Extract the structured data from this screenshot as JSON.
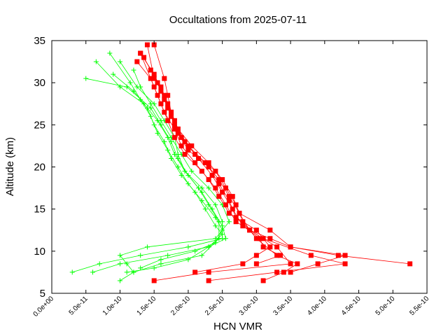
{
  "chart_data": {
    "type": "scatter",
    "title": "Occultations from 2025-07-11",
    "xlabel": "HCN VMR",
    "ylabel": "Altitude (km)",
    "xlim": [
      0,
      5.5e-10
    ],
    "ylim": [
      5,
      35
    ],
    "grid": false,
    "legend": "none",
    "x_ticks": [
      "0.0e+00",
      "5.0e-11",
      "1.0e-10",
      "1.5e-10",
      "2.0e-10",
      "2.5e-10",
      "3.0e-10",
      "3.5e-10",
      "4.0e-10",
      "4.5e-10",
      "5.0e-10",
      "5.5e-10"
    ],
    "x_tick_values": [
      0,
      5e-11,
      1e-10,
      1.5e-10,
      2e-10,
      2.5e-10,
      3e-10,
      3.5e-10,
      4e-10,
      4.5e-10,
      5e-10,
      5.5e-10
    ],
    "y_ticks": [
      "5",
      "10",
      "15",
      "20",
      "25",
      "30",
      "35"
    ],
    "y_tick_values": [
      5,
      10,
      15,
      20,
      25,
      30,
      35
    ],
    "colors": {
      "red": "#ff0000",
      "green": "#00ff00",
      "axis": "#000000"
    },
    "series": [
      {
        "color": "#00ff00",
        "marker": "plus",
        "profiles": [
          {
            "x": [
              1.2e-10,
              1.1e-10,
              1e-10,
              1.4e-10,
              2.4e-10,
              2.6e-10,
              2.5e-10,
              2.3e-10,
              2.05e-10,
              1.9e-10,
              1.75e-10,
              1.6e-10,
              1.45e-10,
              1.3e-10,
              1.2e-10
            ],
            "y": [
              7.5,
              8.5,
              9.5,
              10.5,
              11.5,
              13.5,
              15.5,
              17.5,
              19.5,
              21.5,
              23.5,
              25.5,
              27.5,
              29.5,
              31.5
            ]
          },
          {
            "x": [
              3e-11,
              7e-11,
              1.3e-10,
              2e-10,
              2.5e-10,
              2.5e-10,
              2.4e-10,
              2.2e-10,
              1.95e-10,
              1.8e-10,
              1.7e-10,
              1.55e-10,
              1.35e-10,
              1e-10,
              6.5e-11
            ],
            "y": [
              7.5,
              8.5,
              9.5,
              10.5,
              11.5,
              13.5,
              15.5,
              17.5,
              19.5,
              21.5,
              23.5,
              25.5,
              27.5,
              29.5,
              32.5
            ]
          },
          {
            "x": [
              1e-10,
              1.2e-10,
              1.6e-10,
              2.2e-10,
              2.45e-10,
              2.45e-10,
              2.3e-10,
              2.15e-10,
              1.95e-10,
              1.85e-10,
              1.8e-10,
              1.65e-10,
              1.5e-10,
              1.25e-10,
              1e-10
            ],
            "y": [
              6.5,
              7.5,
              8.5,
              9.5,
              11.5,
              13.5,
              15.5,
              17.5,
              19.5,
              21.5,
              23.5,
              25.5,
              27.5,
              29.5,
              32.5
            ]
          },
          {
            "x": [
              1.1e-10,
              1.5e-10,
              2e-10,
              2.3e-10,
              2.5e-10,
              2.4e-10,
              2.25e-10,
              2.1e-10,
              1.9e-10,
              1.75e-10,
              1.65e-10,
              1.5e-10,
              1.4e-10,
              1.2e-10,
              9e-11
            ],
            "y": [
              7.5,
              8.0,
              9.0,
              10.5,
              12.0,
              13.0,
              15.0,
              17.0,
              19.0,
              21.0,
              23.0,
              25.0,
              27.0,
              29.0,
              31.0
            ]
          },
          {
            "x": [
              6e-11,
              1e-10,
              1.7e-10,
              2.3e-10,
              2.55e-10,
              2.5e-10,
              2.35e-10,
              2.2e-10,
              2e-10,
              1.85e-10,
              1.75e-10,
              1.6e-10,
              1.45e-10,
              1.1e-10,
              5e-11
            ],
            "y": [
              7.5,
              8.5,
              9.5,
              10.5,
              11.5,
              13.0,
              15.0,
              17.0,
              19.0,
              21.0,
              23.0,
              25.0,
              27.0,
              29.5,
              30.5
            ]
          },
          {
            "x": [
              1.3e-10,
              1.6e-10,
              2.1e-10,
              2.4e-10,
              2.5e-10,
              2.4e-10,
              2.2e-10,
              2e-10,
              1.85e-10,
              1.7e-10,
              1.55e-10,
              1.45e-10,
              1.3e-10,
              1.15e-10,
              8.5e-11
            ],
            "y": [
              8.0,
              9.0,
              10.0,
              11.0,
              12.5,
              14.0,
              16.0,
              18.0,
              20.0,
              22.0,
              24.0,
              26.0,
              28.0,
              30.0,
              33.5
            ]
          }
        ]
      },
      {
        "color": "#ff0000",
        "marker": "square",
        "profiles": [
          {
            "x": [
              1.5e-10,
              2.3e-10,
              3.5e-10,
              3.3e-10,
              2.9e-10,
              2.75e-10,
              2.65e-10,
              2.5e-10,
              2.3e-10,
              2.05e-10,
              1.85e-10,
              1.75e-10,
              1.7e-10,
              1.65e-10,
              1.5e-10
            ],
            "y": [
              6.5,
              7.5,
              8.5,
              10.5,
              12.5,
              14.5,
              16.5,
              18.5,
              20.5,
              22.5,
              24.5,
              26.5,
              28.5,
              30.5,
              34.5
            ]
          },
          {
            "x": [
              2.3e-10,
              3.3e-10,
              4.3e-10,
              3.8e-10,
              3.1e-10,
              2.7e-10,
              2.55e-10,
              2.4e-10,
              2.2e-10,
              1.95e-10,
              1.8e-10,
              1.7e-10,
              1.6e-10,
              1.5e-10,
              1.3e-10
            ],
            "y": [
              6.5,
              7.5,
              8.5,
              9.5,
              11.5,
              13.5,
              15.5,
              17.5,
              19.5,
              21.5,
              23.5,
              25.5,
              27.5,
              29.5,
              33.5
            ]
          },
          {
            "x": [
              2.1e-10,
              2.8e-10,
              3e-10,
              3.2e-10,
              3e-10,
              2.6e-10,
              2.45e-10,
              2.3e-10,
              2.1e-10,
              1.9e-10,
              1.8e-10,
              1.65e-10,
              1.55e-10,
              1.45e-10,
              1.25e-10
            ],
            "y": [
              7.5,
              8.5,
              9.5,
              10.5,
              12.5,
              14.5,
              16.5,
              18.5,
              20.5,
              22.5,
              24.5,
              26.5,
              28.5,
              30.5,
              32.5
            ]
          },
          {
            "x": [
              3.5e-10,
              3.9e-10,
              4.3e-10,
              3.5e-10,
              3.2e-10,
              2.75e-10,
              2.6e-10,
              2.45e-10,
              2.25e-10,
              2e-10,
              1.85e-10,
              1.75e-10,
              1.65e-10,
              1.5e-10,
              1.4e-10
            ],
            "y": [
              7.5,
              8.5,
              9.5,
              10.5,
              12.5,
              14.5,
              16.5,
              18.5,
              20.5,
              22.5,
              24.5,
              26.5,
              28.5,
              30.5,
              34.5
            ]
          },
          {
            "x": [
              3.1e-10,
              3.4e-10,
              3.6e-10,
              3.3e-10,
              3e-10,
              2.8e-10,
              2.7e-10,
              2.55e-10,
              2.4e-10,
              2.1e-10,
              1.9e-10,
              1.8e-10,
              1.7e-10,
              1.6e-10,
              1.45e-10
            ],
            "y": [
              6.5,
              7.5,
              8.5,
              9.5,
              11.5,
              13.5,
              15.5,
              17.5,
              19.5,
              21.5,
              23.5,
              25.5,
              27.5,
              29.5,
              31.5
            ]
          },
          {
            "x": [
              5.25e-10,
              4.2e-10,
              3.5e-10,
              3.2e-10,
              2.9e-10,
              2.7e-10,
              2.6e-10,
              2.45e-10,
              2.3e-10,
              2e-10,
              1.85e-10,
              1.75e-10,
              1.65e-10,
              1.55e-10,
              1.35e-10
            ],
            "y": [
              8.5,
              9.5,
              10.5,
              11.5,
              12.5,
              14.0,
              16.0,
              18.0,
              20.0,
              22.0,
              24.0,
              26.0,
              28.0,
              30.0,
              33.0
            ]
          },
          {
            "x": [
              3e-10,
              3.35e-10,
              3.1e-10,
              3.05e-10,
              2.8e-10,
              2.65e-10,
              2.5e-10,
              2.35e-10,
              2.15e-10,
              1.95e-10,
              1.8e-10,
              1.7e-10,
              1.6e-10,
              1.5e-10,
              1.3e-10
            ],
            "y": [
              8.5,
              9.5,
              10.5,
              11.5,
              13.0,
              15.0,
              17.0,
              19.0,
              21.0,
              23.0,
              25.0,
              27.0,
              29.0,
              31.0,
              33.5
            ]
          }
        ]
      }
    ]
  }
}
